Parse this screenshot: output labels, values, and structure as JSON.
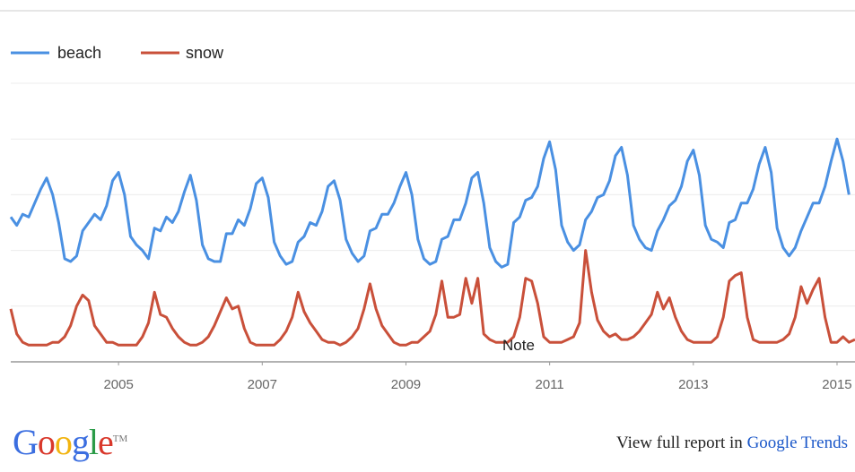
{
  "legend": [
    {
      "name": "beach",
      "color": "#4a90e2"
    },
    {
      "name": "snow",
      "color": "#c9503a"
    }
  ],
  "note_label": "Note",
  "footer": {
    "logo": [
      "G",
      "o",
      "o",
      "g",
      "l",
      "e"
    ],
    "logo_colors": [
      "#3b6ee0",
      "#d9382b",
      "#f2b40f",
      "#3b6ee0",
      "#2a9b47",
      "#d9382b"
    ],
    "trademark": "TM",
    "text_prefix": "View full report in ",
    "link_text": "Google Trends"
  },
  "chart_data": {
    "type": "line",
    "title": "",
    "xlabel": "",
    "ylabel": "",
    "x_ticks": [
      "2005",
      "2007",
      "2009",
      "2011",
      "2013",
      "2015"
    ],
    "x_range": [
      2004.0,
      2015.75
    ],
    "ylim": [
      0,
      100
    ],
    "grid": true,
    "legend_position": "top-left",
    "series": [
      {
        "name": "beach",
        "color": "#4a90e2",
        "values": [
          52,
          49,
          53,
          52,
          57,
          62,
          66,
          60,
          50,
          37,
          36,
          38,
          47,
          50,
          53,
          51,
          56,
          65,
          68,
          60,
          45,
          42,
          40,
          37,
          48,
          47,
          52,
          50,
          54,
          61,
          67,
          58,
          42,
          37,
          36,
          36,
          46,
          46,
          51,
          49,
          55,
          64,
          66,
          59,
          43,
          38,
          35,
          36,
          43,
          45,
          50,
          49,
          54,
          63,
          65,
          58,
          44,
          39,
          36,
          38,
          47,
          48,
          53,
          53,
          57,
          63,
          68,
          60,
          44,
          37,
          35,
          36,
          44,
          45,
          51,
          51,
          57,
          66,
          68,
          57,
          41,
          36,
          34,
          35,
          50,
          52,
          58,
          59,
          63,
          73,
          79,
          69,
          49,
          43,
          40,
          42,
          51,
          54,
          59,
          60,
          65,
          74,
          77,
          67,
          49,
          44,
          41,
          40,
          47,
          51,
          56,
          58,
          63,
          72,
          76,
          67,
          49,
          44,
          43,
          41,
          50,
          51,
          57,
          57,
          62,
          71,
          77,
          68,
          48,
          41,
          38,
          41,
          47,
          52,
          57,
          57,
          63,
          72,
          80,
          72,
          60
        ]
      },
      {
        "name": "snow",
        "color": "#c9503a",
        "values": [
          19,
          10,
          7,
          6,
          6,
          6,
          6,
          7,
          7,
          9,
          13,
          20,
          24,
          22,
          13,
          10,
          7,
          7,
          6,
          6,
          6,
          6,
          9,
          14,
          25,
          17,
          16,
          12,
          9,
          7,
          6,
          6,
          7,
          9,
          13,
          18,
          23,
          19,
          20,
          12,
          7,
          6,
          6,
          6,
          6,
          8,
          11,
          16,
          25,
          18,
          14,
          11,
          8,
          7,
          7,
          6,
          7,
          9,
          12,
          19,
          28,
          19,
          13,
          10,
          7,
          6,
          6,
          7,
          7,
          9,
          11,
          17,
          29,
          16,
          16,
          17,
          30,
          21,
          30,
          10,
          8,
          7,
          7,
          7,
          9,
          16,
          30,
          29,
          21,
          9,
          7,
          7,
          7,
          8,
          9,
          14,
          40,
          25,
          15,
          11,
          9,
          10,
          8,
          8,
          9,
          11,
          14,
          17,
          25,
          19,
          23,
          16,
          11,
          8,
          7,
          7,
          7,
          7,
          9,
          16,
          29,
          31,
          32,
          16,
          8,
          7,
          7,
          7,
          7,
          8,
          10,
          16,
          27,
          21,
          26,
          30,
          16,
          7,
          7,
          9,
          7,
          8
        ]
      }
    ]
  }
}
